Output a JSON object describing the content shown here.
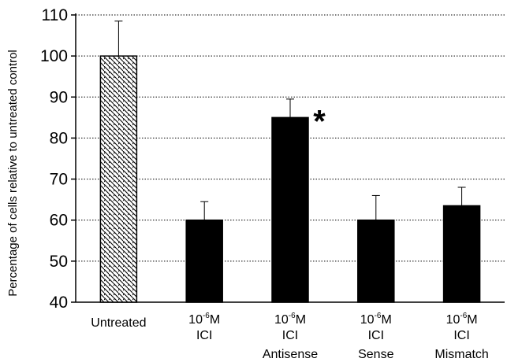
{
  "chart_data": {
    "type": "bar",
    "title": "",
    "xlabel": "",
    "ylabel": "Percentage of cells relative to untreated control",
    "ylim": [
      40,
      110
    ],
    "yticks": [
      40,
      50,
      60,
      70,
      80,
      90,
      100,
      110
    ],
    "grid": true,
    "categories": [
      {
        "lines": [
          "Untreated"
        ]
      },
      {
        "conc_base": "10",
        "conc_exp": "-6",
        "conc_unit": "M",
        "lines": [
          "ICI"
        ]
      },
      {
        "conc_base": "10",
        "conc_exp": "-6",
        "conc_unit": "M",
        "lines": [
          "ICI",
          "Antisense"
        ]
      },
      {
        "conc_base": "10",
        "conc_exp": "-6",
        "conc_unit": "M",
        "lines": [
          "ICI",
          "Sense"
        ]
      },
      {
        "conc_base": "10",
        "conc_exp": "-6",
        "conc_unit": "M",
        "lines": [
          "ICI",
          "Mismatch"
        ]
      }
    ],
    "values": [
      100,
      60,
      85,
      60,
      63.5
    ],
    "errors": [
      8.5,
      4.5,
      4.5,
      6,
      4.5
    ],
    "fills": [
      "hatched",
      "solid",
      "solid",
      "solid",
      "solid"
    ],
    "significance": [
      null,
      null,
      "*",
      null,
      null
    ],
    "colors": {
      "bar": "#000000",
      "grid": "#000000",
      "background": "#ffffff"
    }
  }
}
